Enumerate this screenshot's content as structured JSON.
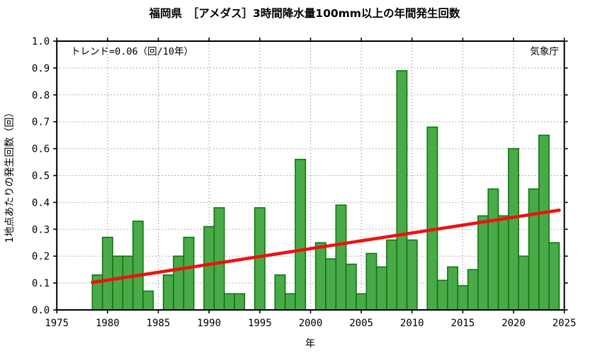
{
  "header": {
    "title": "福岡県　［アメダス］3時間降水量100mm以上の年間発生回数"
  },
  "annotations": {
    "trend_label": "トレンド=0.06（回/10年）",
    "attribution": "気象庁"
  },
  "chart_data": {
    "type": "bar",
    "title": "福岡県　［アメダス］3時間降水量100mm以上の年間発生回数",
    "xlabel": "年",
    "ylabel": "1地点あたりの発生回数（回）",
    "xlim": [
      1975,
      2025
    ],
    "ylim": [
      0.0,
      1.0
    ],
    "grid": true,
    "x_ticks": [
      "1975",
      "1980",
      "1985",
      "1990",
      "1995",
      "2000",
      "2005",
      "2010",
      "2015",
      "2020",
      "2025"
    ],
    "y_ticks": [
      "0.0",
      "0.1",
      "0.2",
      "0.3",
      "0.4",
      "0.5",
      "0.6",
      "0.7",
      "0.8",
      "0.9",
      "1.0"
    ],
    "years": [
      1979,
      1980,
      1981,
      1982,
      1983,
      1984,
      1985,
      1986,
      1987,
      1988,
      1989,
      1990,
      1991,
      1992,
      1993,
      1994,
      1995,
      1996,
      1997,
      1998,
      1999,
      2000,
      2001,
      2002,
      2003,
      2004,
      2005,
      2006,
      2007,
      2008,
      2009,
      2010,
      2011,
      2012,
      2013,
      2014,
      2015,
      2016,
      2017,
      2018,
      2019,
      2020,
      2021,
      2022,
      2023,
      2024
    ],
    "values": [
      0.13,
      0.27,
      0.2,
      0.2,
      0.33,
      0.07,
      0.0,
      0.13,
      0.2,
      0.27,
      0.0,
      0.31,
      0.38,
      0.06,
      0.06,
      0.0,
      0.38,
      0.0,
      0.13,
      0.06,
      0.56,
      0.0,
      0.25,
      0.19,
      0.39,
      0.17,
      0.06,
      0.21,
      0.16,
      0.26,
      0.89,
      0.26,
      0.0,
      0.68,
      0.11,
      0.16,
      0.09,
      0.15,
      0.35,
      0.45,
      0.35,
      0.6,
      0.2,
      0.45,
      0.65,
      0.25
    ],
    "trend": {
      "label": "トレンド=0.06（回/10年）",
      "per_decade": 0.06,
      "line": {
        "x1": 1978.5,
        "v1": 0.102,
        "x2": 2024.5,
        "v2": 0.371
      }
    },
    "legend_position": "none"
  },
  "colors": {
    "bar_fill": "#4aaa4a",
    "bar_edge": "#0b7a0b",
    "trend": "#ee1111",
    "grid": "#999999",
    "frame": "#000000",
    "background": "#ffffff"
  }
}
